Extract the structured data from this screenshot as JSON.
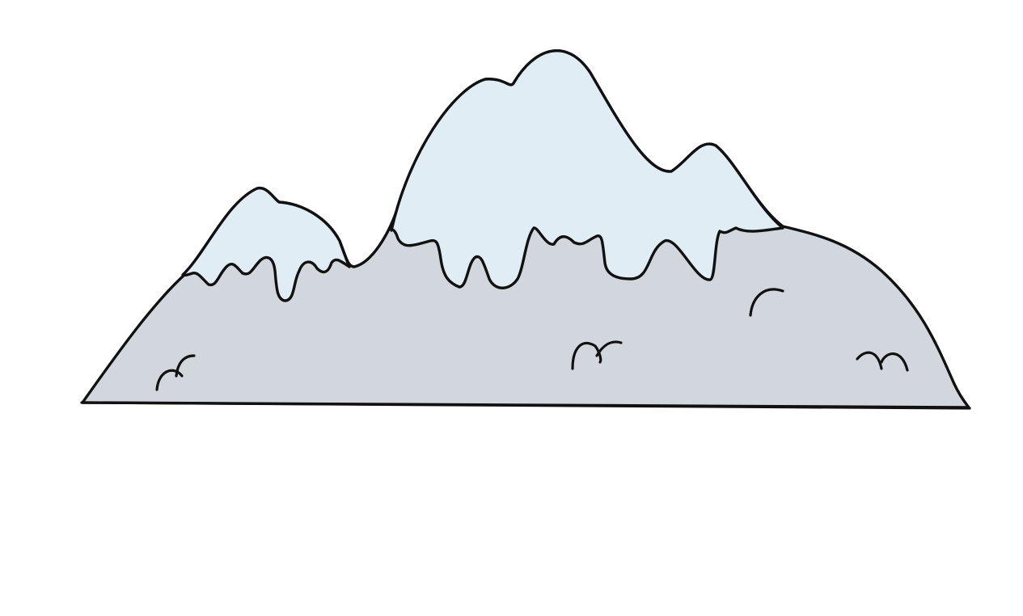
{
  "illustration": {
    "subject": "snow-capped-mountain",
    "colors": {
      "background": "#ffffff",
      "rock": "#d2d7dd",
      "snow": "#e0edf5",
      "outline": "#111111"
    },
    "icons": [
      "mountain-icon",
      "snow-cap-icon",
      "grass-tuft-icon"
    ]
  }
}
